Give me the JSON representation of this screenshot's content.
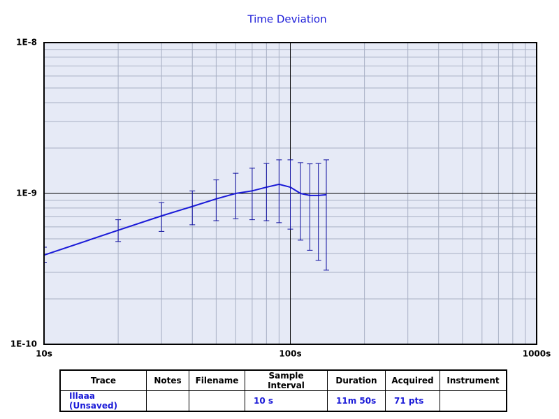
{
  "chart_data": {
    "type": "line",
    "title": "Time Deviation",
    "x": [
      10,
      20,
      30,
      40,
      50,
      60,
      70,
      80,
      90,
      100,
      110,
      120,
      130,
      140
    ],
    "series": [
      {
        "color": "#1a1ad8",
        "values": [
          3.9e-10,
          5.7e-10,
          7.1e-10,
          8.2e-10,
          9.2e-10,
          1e-09,
          1.04e-09,
          1.1e-09,
          1.15e-09,
          1.1e-09,
          1e-09,
          9.7e-10,
          9.7e-10,
          9.8e-10
        ],
        "upper": [
          4.4e-10,
          6.7e-10,
          8.7e-10,
          1.04e-09,
          1.23e-09,
          1.36e-09,
          1.47e-09,
          1.58e-09,
          1.67e-09,
          1.67e-09,
          1.6e-09,
          1.57e-09,
          1.58e-09,
          1.67e-09
        ],
        "lower": [
          3.5e-10,
          4.8e-10,
          5.6e-10,
          6.2e-10,
          6.6e-10,
          6.8e-10,
          6.7e-10,
          6.6e-10,
          6.4e-10,
          5.8e-10,
          4.9e-10,
          4.2e-10,
          3.6e-10,
          3.1e-10
        ]
      }
    ],
    "xlim": [
      10,
      1000
    ],
    "ylim": [
      1e-10,
      1e-08
    ],
    "xlog": true,
    "ylog": true,
    "grid": true,
    "xticks": [
      {
        "value": 10,
        "label": "10s"
      },
      {
        "value": 100,
        "label": "100s"
      },
      {
        "value": 1000,
        "label": "1000s"
      }
    ],
    "yticks": [
      {
        "value": 1e-10,
        "label": "1E-10"
      },
      {
        "value": 1e-09,
        "label": "1E-9"
      },
      {
        "value": 1e-08,
        "label": "1E-8"
      }
    ]
  },
  "table": {
    "columns": [
      "Trace",
      "Notes",
      "Filename",
      "Sample Interval",
      "Duration",
      "Acquired",
      "Instrument"
    ],
    "rows": [
      [
        "Illaaa (Unsaved)",
        "",
        "",
        "10 s",
        "11m 50s",
        "71 pts",
        ""
      ]
    ]
  }
}
